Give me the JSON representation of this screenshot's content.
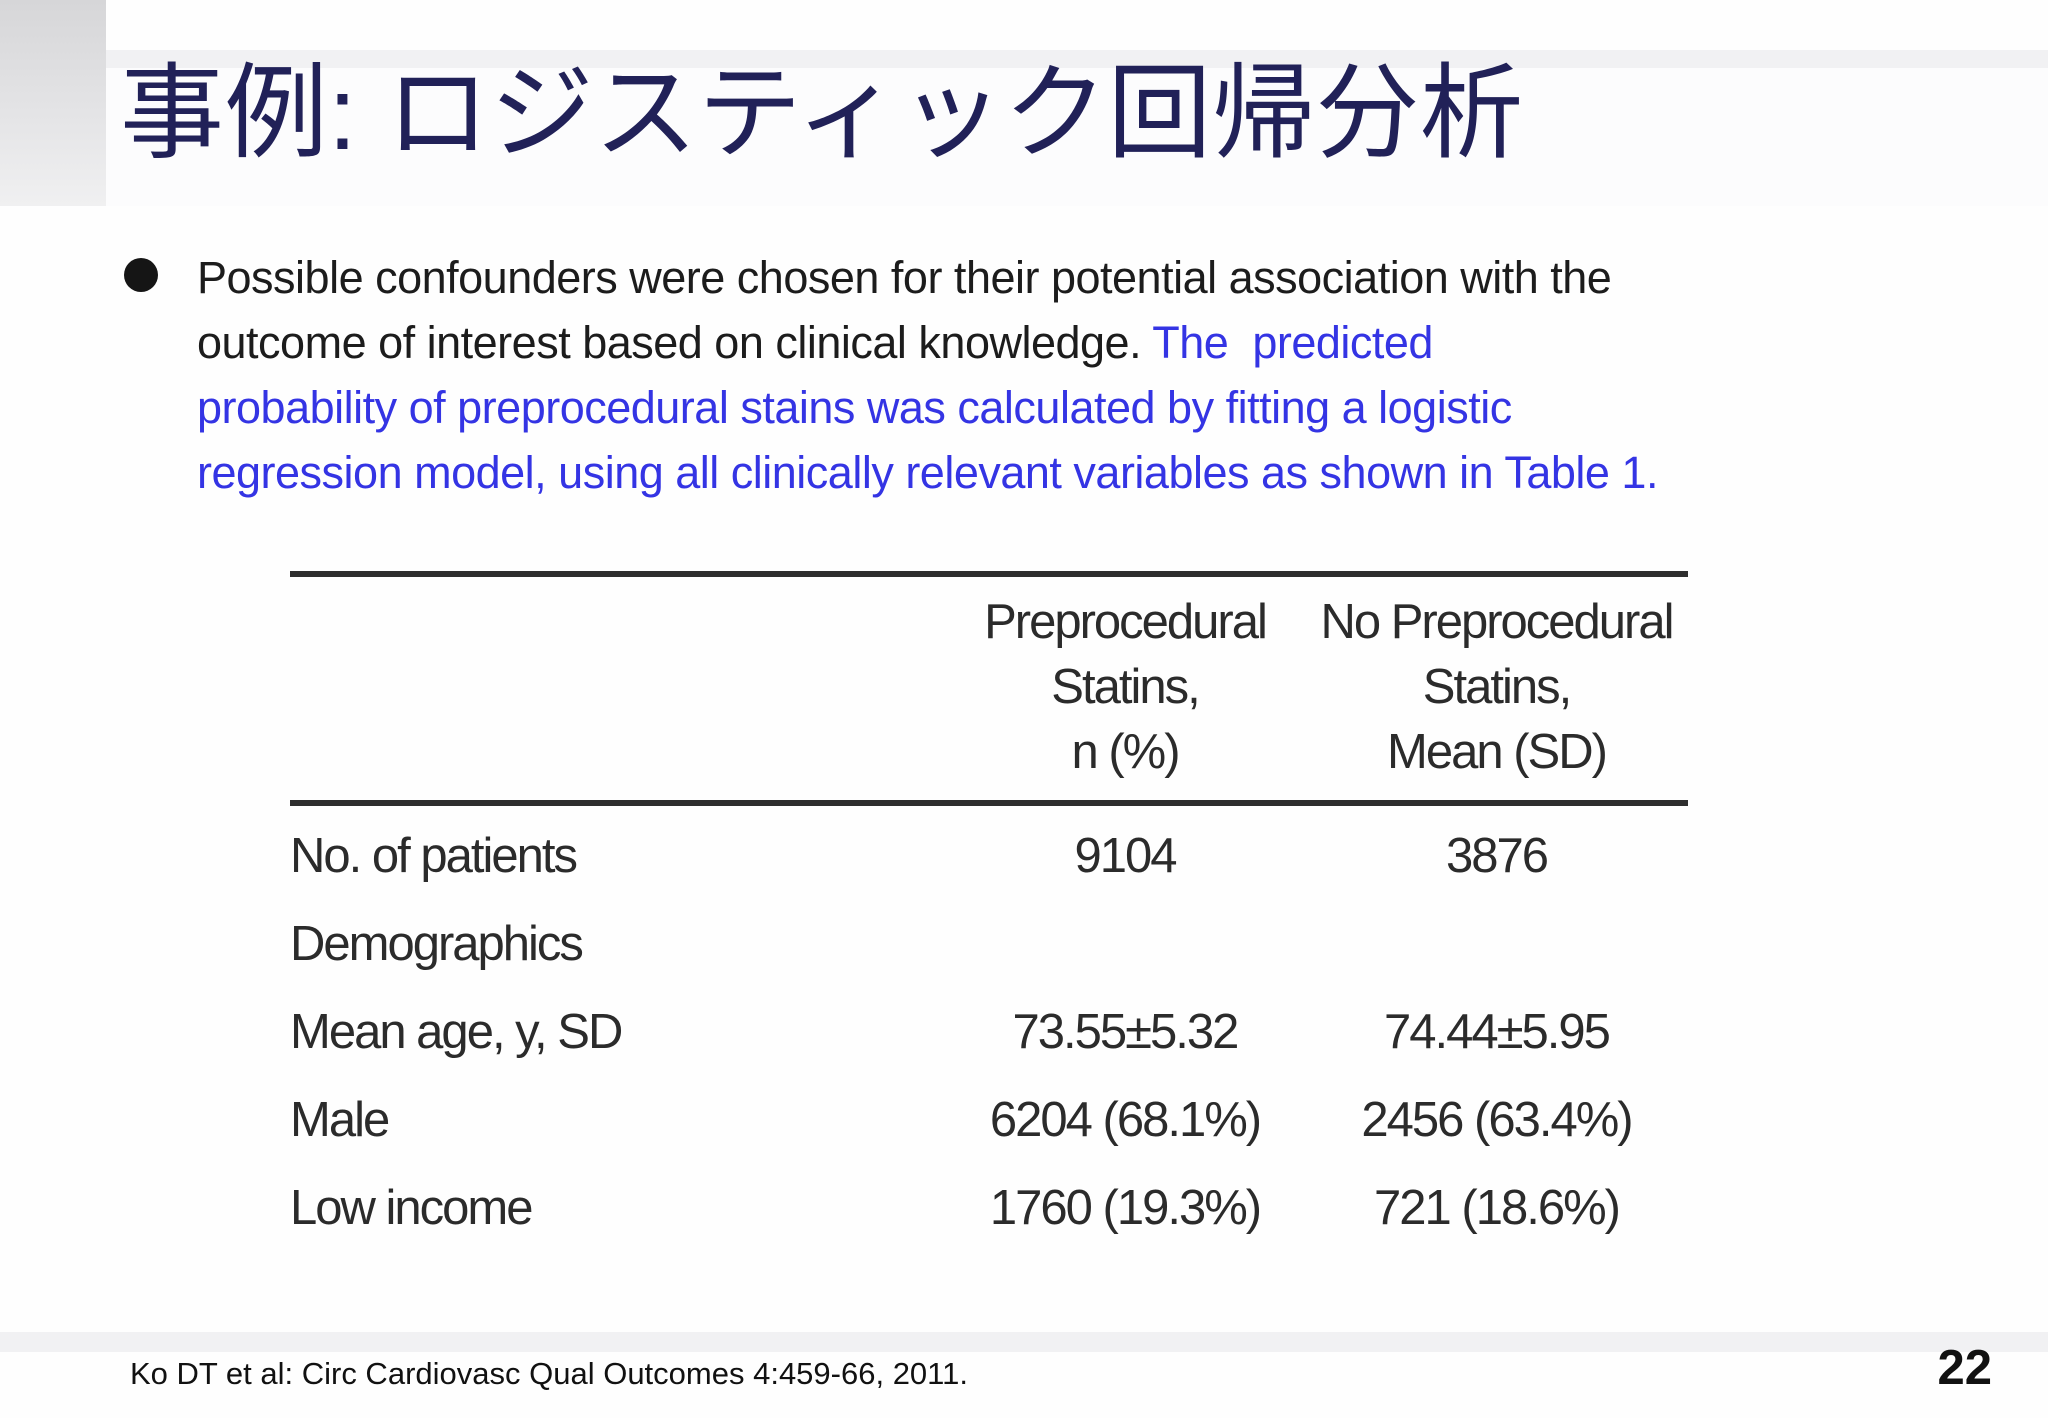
{
  "slide": {
    "title": "事例: ロジスティック回帰分析",
    "bullet_lines": [
      {
        "black": "Possible confounders were chosen for their potential association with the",
        "blue": ""
      },
      {
        "black": "outcome of interest based on clinical knowledge.",
        "blue": " The  predicted"
      },
      {
        "black": "",
        "blue": "probability of preprocedural stains was calculated by fitting a logistic"
      },
      {
        "black": "",
        "blue": "regression model, using all clinically relevant variables as shown in Table 1."
      }
    ],
    "footer": {
      "citation": "Ko DT et al: Circ Cardiovasc Qual Outcomes 4:459-66, 2011.",
      "page_number": "22"
    },
    "icons": {
      "bullet": "filled-circle"
    },
    "colors": {
      "title_navy": "#212158",
      "emphasis_blue": "#3434e4",
      "body_black": "#1c1c1c",
      "band_gray": "#f1f1f3",
      "table_text": "#2b2b2b"
    }
  },
  "table": {
    "header": {
      "col2_lines": [
        "Preprocedural",
        "Statins,",
        "n (%)"
      ],
      "col3_lines": [
        "No Preprocedural",
        "Statins,",
        "Mean (SD)"
      ]
    },
    "rows": [
      {
        "label": "No. of patients",
        "col2": "9104",
        "col3": "3876"
      },
      {
        "label": "Demographics",
        "col2": "",
        "col3": ""
      },
      {
        "label": "Mean age, y, SD",
        "col2": "73.55±5.32",
        "col3": "74.44±5.95"
      },
      {
        "label": "Male",
        "col2": "6204 (68.1%)",
        "col3": "2456 (63.4%)"
      },
      {
        "label": "Low income",
        "col2": "1760 (19.3%)",
        "col3": "721 (18.6%)"
      }
    ]
  }
}
